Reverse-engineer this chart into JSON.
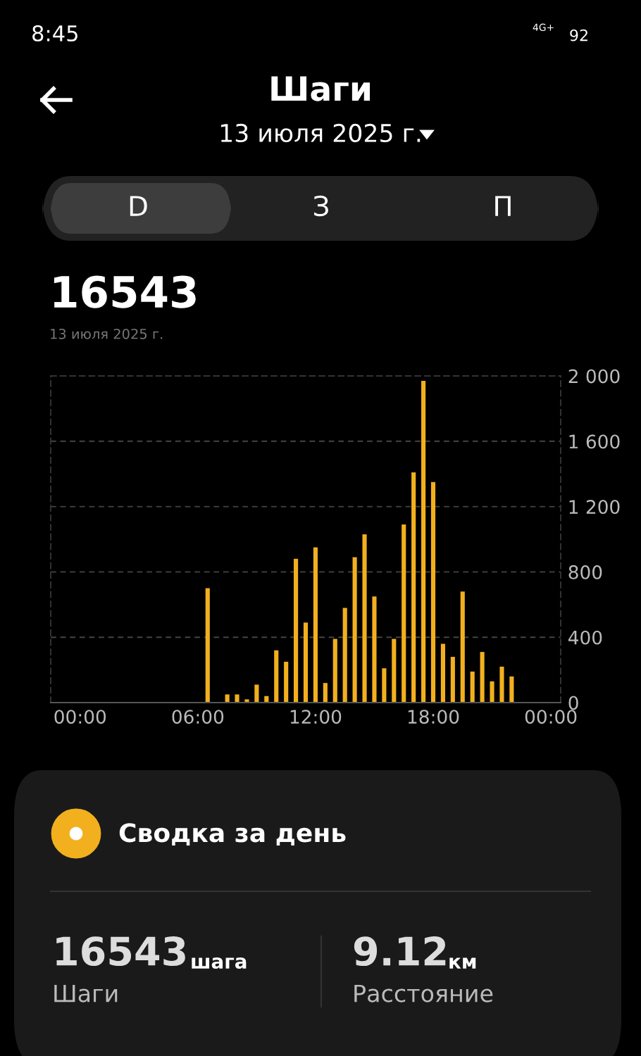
{
  "chart_data": {
    "type": "bar",
    "title": "Шаги",
    "subtitle": "13 июля 2025 г.",
    "x": [
      6.5,
      7.5,
      8.0,
      8.5,
      9.0,
      9.5,
      10.0,
      10.5,
      11.0,
      11.5,
      12.0,
      12.5,
      13.0,
      13.5,
      14.0,
      14.5,
      15.0,
      15.5,
      16.0,
      16.5,
      17.0,
      17.5,
      18.0,
      18.5,
      19.0,
      19.5,
      20.0,
      20.5,
      21.0,
      21.5,
      22.0
    ],
    "values": [
      700,
      50,
      50,
      20,
      110,
      40,
      320,
      250,
      880,
      490,
      950,
      120,
      390,
      580,
      890,
      1030,
      650,
      210,
      390,
      1090,
      1410,
      1970,
      1350,
      360,
      280,
      680,
      190,
      310,
      130,
      220,
      160
    ],
    "color": "#f2b01e",
    "xlim": [
      -1.5,
      24.5
    ],
    "xticks": [
      {
        "value": 0,
        "label": "00:00"
      },
      {
        "value": 6,
        "label": "06:00"
      },
      {
        "value": 12,
        "label": "12:00"
      },
      {
        "value": 18,
        "label": "18:00"
      },
      {
        "value": 24,
        "label": "00:00"
      }
    ],
    "ylim": [
      0,
      2000
    ],
    "yticks": [
      0,
      400,
      800,
      {
        "value": 1200,
        "label": "1 200"
      },
      {
        "value": 1600,
        "label": "1 600"
      },
      {
        "value": 2000,
        "label": "2 000"
      }
    ],
    "grid": "y",
    "annotations": [
      "8:45",
      "4G+",
      "92",
      "D",
      "З",
      "П",
      "16543",
      "13 июля 2025 г.",
      "Сводка за день",
      "16543",
      "шага",
      "Шаги",
      "9.12",
      "км",
      "Расстояние"
    ]
  }
}
